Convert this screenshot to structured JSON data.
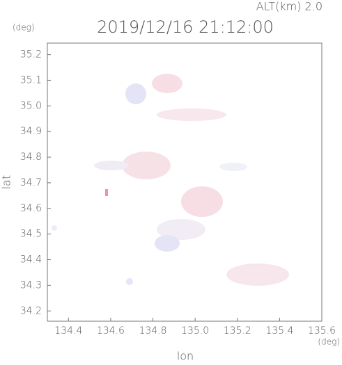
{
  "chart_data": {
    "type": "map",
    "title": "2019/12/16 21:12:00",
    "altitude_label": "ALT(km) 2.0",
    "y_unit": "(deg)",
    "x_unit": "(deg)",
    "x_label": "lon",
    "y_label": "lat",
    "xlim": [
      134.3,
      135.6
    ],
    "ylim": [
      34.16,
      35.245
    ],
    "xticks": [
      134.4,
      134.6,
      134.8,
      135.0,
      135.2,
      135.4,
      135.6
    ],
    "yticks": [
      34.2,
      34.3,
      34.4,
      34.5,
      34.6,
      34.7,
      34.8,
      34.9,
      35.0,
      35.1,
      35.2
    ]
  }
}
